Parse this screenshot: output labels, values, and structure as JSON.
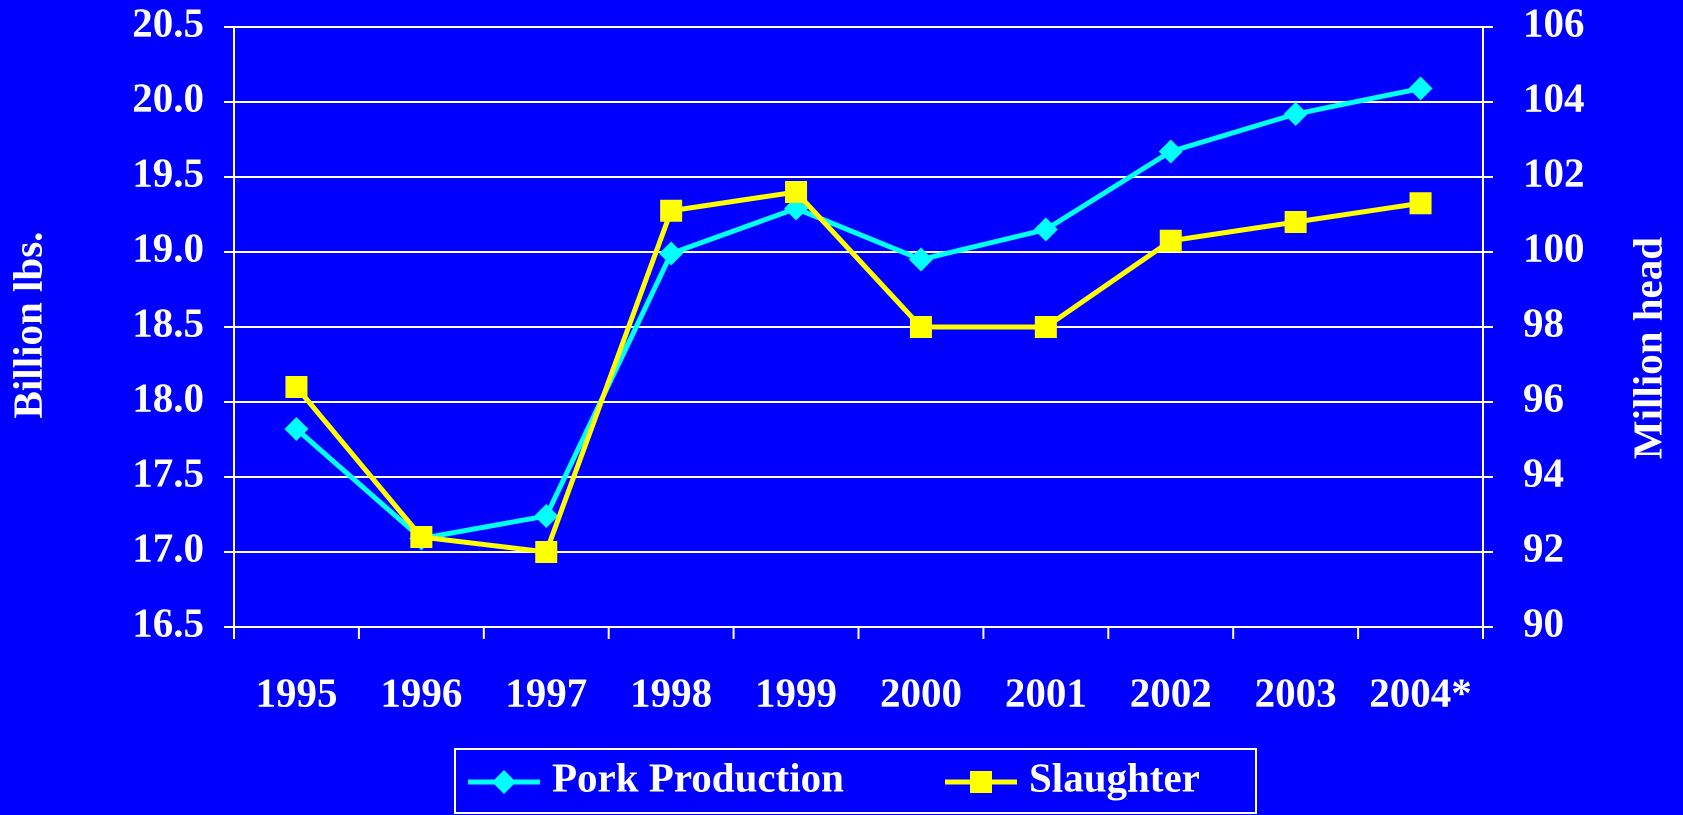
{
  "chart_data": {
    "type": "line",
    "categories": [
      "1995",
      "1996",
      "1997",
      "1998",
      "1999",
      "2000",
      "2001",
      "2002",
      "2003",
      "2004*"
    ],
    "series": [
      {
        "name": "Pork Production",
        "color": "#00ffff",
        "marker": "diamond",
        "values": [
          17.82,
          17.09,
          17.24,
          18.99,
          19.29,
          18.95,
          19.15,
          19.67,
          19.92,
          20.09
        ]
      },
      {
        "name": "Slaughter",
        "color": "#ffff00",
        "marker": "square",
        "axis": "y2",
        "values": [
          96.4,
          92.4,
          92.0,
          101.1,
          101.6,
          98.0,
          98.0,
          100.3,
          100.8,
          101.3
        ]
      }
    ],
    "ylabel": "Billion lbs.",
    "y2label": "Million head",
    "ylim": [
      16.5,
      20.5
    ],
    "yticks": [
      16.5,
      {
        "value": 17,
        "label": "17.0"
      },
      17.5,
      {
        "value": 18,
        "label": "18.0"
      },
      18.5,
      {
        "value": 19,
        "label": "19.0"
      },
      19.5,
      {
        "value": 20,
        "label": "20.0"
      },
      20.5
    ],
    "y2lim": [
      90,
      106
    ],
    "y2ticks": [
      90,
      92,
      94,
      96,
      98,
      100,
      102,
      104,
      106
    ],
    "grid": true,
    "legend": "bottom"
  }
}
